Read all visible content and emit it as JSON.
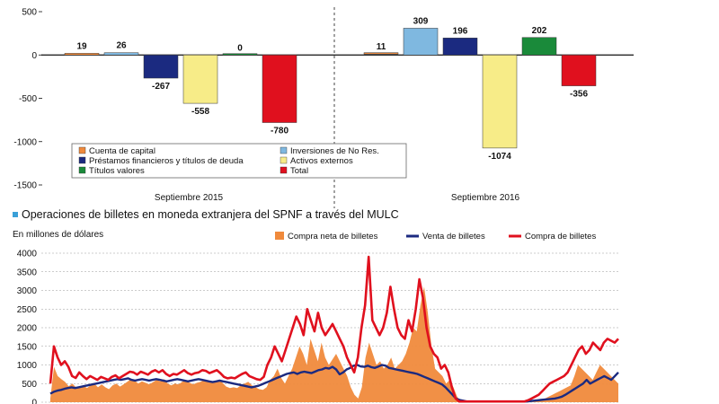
{
  "chart_data": [
    {
      "type": "bar",
      "ylim": [
        -1500,
        500
      ],
      "yticks": [
        500,
        0,
        -500,
        -1000,
        -1500
      ],
      "groups": [
        "Septiembre 2015",
        "Septiembre 2016"
      ],
      "series": [
        {
          "name": "Cuenta de capital",
          "color": "#f08a3c",
          "values": [
            19,
            11
          ]
        },
        {
          "name": "Inversiones de No Res.",
          "color": "#7fb8e0",
          "values": [
            26,
            309
          ]
        },
        {
          "name": "Préstamos financieros y títulos de deuda",
          "color": "#1b2a80",
          "values": [
            -267,
            196
          ]
        },
        {
          "name": "Activos externos",
          "color": "#f7ec88",
          "values": [
            -558,
            -1074
          ]
        },
        {
          "name": "Títulos valores",
          "color": "#1a8a3a",
          "values": [
            0,
            202
          ]
        },
        {
          "name": "Total",
          "color": "#e0101e",
          "values": [
            -780,
            -356
          ]
        }
      ],
      "value_labels": [
        [
          "19",
          "26",
          "-267",
          "-558",
          "0",
          "-780"
        ],
        [
          "11",
          "309",
          "196",
          "-1074",
          "202",
          "-356"
        ]
      ]
    },
    {
      "type": "line",
      "title": "Operaciones de billetes en moneda extranjera del SPNF a través del MULC",
      "unit_label": "En millones de dólares",
      "ylim": [
        0,
        4000
      ],
      "yticks": [
        4000,
        3500,
        3000,
        2500,
        2000,
        1500,
        1000,
        500,
        0
      ],
      "series": [
        {
          "name": "Compra neta de billetes",
          "kind": "area",
          "color": "#f08a3c",
          "values": [
            100,
            950,
            700,
            620,
            550,
            430,
            500,
            400,
            420,
            450,
            380,
            450,
            500,
            400,
            480,
            400,
            350,
            450,
            500,
            420,
            480,
            550,
            620,
            580,
            500,
            560,
            520,
            480,
            540,
            600,
            560,
            620,
            500,
            450,
            500,
            480,
            550,
            600,
            520,
            480,
            520,
            550,
            600,
            580,
            520,
            560,
            600,
            520,
            420,
            380,
            400,
            380,
            450,
            500,
            550,
            450,
            400,
            350,
            330,
            400,
            600,
            700,
            900,
            650,
            500,
            700,
            900,
            1200,
            1500,
            1300,
            1000,
            1700,
            1400,
            1100,
            1600,
            1200,
            1000,
            1150,
            1300,
            1100,
            900,
            700,
            400,
            200,
            100,
            400,
            1200,
            1600,
            1300,
            1000,
            1100,
            900,
            1000,
            1200,
            900,
            1000,
            1100,
            1300,
            1600,
            2000,
            1900,
            2600,
            3100,
            2400,
            1500,
            900,
            800,
            700,
            500,
            600,
            400,
            150,
            20,
            0,
            0,
            0,
            0,
            0,
            0,
            0,
            0,
            0,
            0,
            0,
            0,
            0,
            0,
            0,
            0,
            0,
            0,
            0,
            20,
            50,
            80,
            100,
            150,
            200,
            250,
            300,
            350,
            400,
            450,
            700,
            1000,
            900,
            800,
            700,
            600,
            800,
            1000,
            900,
            800,
            700,
            600,
            500
          ]
        },
        {
          "name": "Venta de billetes",
          "kind": "line",
          "color": "#1b2a80",
          "values": [
            230,
            280,
            310,
            330,
            360,
            380,
            400,
            380,
            400,
            420,
            440,
            460,
            480,
            500,
            520,
            540,
            560,
            580,
            600,
            620,
            600,
            620,
            640,
            600,
            580,
            600,
            620,
            600,
            580,
            600,
            620,
            600,
            580,
            560,
            580,
            600,
            620,
            600,
            580,
            560,
            580,
            600,
            620,
            600,
            580,
            560,
            540,
            560,
            580,
            560,
            540,
            520,
            500,
            480,
            460,
            440,
            420,
            400,
            420,
            440,
            480,
            520,
            560,
            600,
            640,
            680,
            720,
            760,
            780,
            800,
            760,
            800,
            820,
            800,
            780,
            820,
            860,
            880,
            920,
            900,
            950,
            880,
            750,
            800,
            880,
            920,
            980,
            1000,
            960,
            950,
            980,
            940,
            920,
            960,
            1000,
            980,
            920,
            900,
            880,
            860,
            840,
            820,
            800,
            780,
            760,
            720,
            680,
            640,
            600,
            560,
            520,
            480,
            400,
            300,
            200,
            100,
            60,
            40,
            20,
            20,
            20,
            20,
            20,
            20,
            20,
            20,
            20,
            20,
            20,
            20,
            20,
            20,
            20,
            20,
            20,
            20,
            30,
            40,
            50,
            60,
            70,
            80,
            90,
            100,
            120,
            150,
            200,
            260,
            320,
            380,
            440,
            500,
            600,
            500,
            550,
            600,
            650,
            700,
            650,
            600,
            700,
            800
          ]
        },
        {
          "name": "Compra de billetes",
          "kind": "line",
          "color": "#e0101e",
          "values": [
            500,
            1500,
            1200,
            1000,
            1100,
            950,
            700,
            650,
            800,
            700,
            620,
            700,
            650,
            600,
            680,
            640,
            600,
            680,
            720,
            640,
            700,
            760,
            820,
            800,
            740,
            820,
            780,
            740,
            820,
            860,
            800,
            860,
            760,
            700,
            760,
            740,
            800,
            860,
            780,
            740,
            780,
            800,
            860,
            840,
            780,
            820,
            860,
            780,
            680,
            640,
            660,
            640,
            700,
            760,
            800,
            700,
            660,
            620,
            600,
            680,
            1000,
            1200,
            1500,
            1300,
            1100,
            1400,
            1700,
            2000,
            2300,
            2100,
            1800,
            2500,
            2200,
            1900,
            2400,
            2000,
            1800,
            1950,
            2100,
            1900,
            1700,
            1500,
            1200,
            1000,
            800,
            1200,
            2000,
            2600,
            3900,
            2200,
            2000,
            1800,
            2000,
            2400,
            3100,
            2500,
            2000,
            1800,
            1700,
            2200,
            1900,
            2500,
            3300,
            2800,
            2000,
            1500,
            1300,
            1200,
            900,
            1000,
            800,
            400,
            100,
            20,
            20,
            20,
            20,
            20,
            20,
            20,
            20,
            20,
            20,
            20,
            20,
            20,
            20,
            20,
            20,
            20,
            20,
            20,
            50,
            100,
            150,
            200,
            300,
            400,
            500,
            550,
            600,
            650,
            700,
            800,
            1000,
            1200,
            1400,
            1500,
            1300,
            1400,
            1600,
            1500,
            1400,
            1600,
            1700,
            1650,
            1600,
            1700
          ]
        }
      ]
    }
  ]
}
